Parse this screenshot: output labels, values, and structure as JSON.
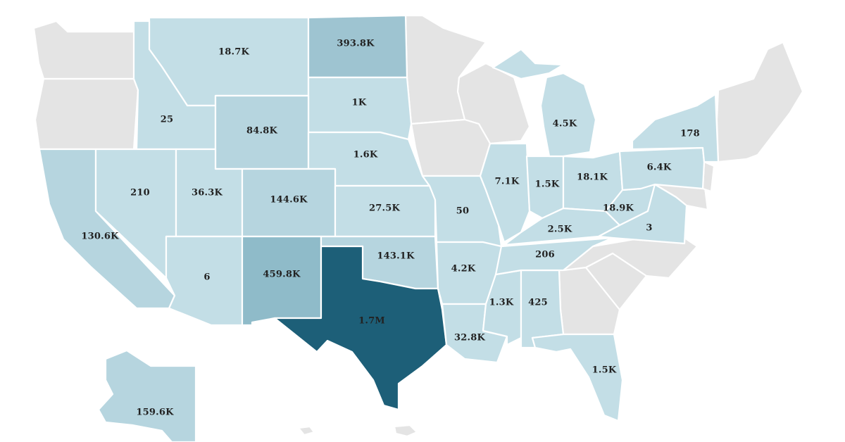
{
  "colors": {
    "no_data": "#e4e4e4",
    "tier1": "#c3dee6",
    "tier2": "#b6d5df",
    "tier3": "#9ec4d1",
    "tier4": "#8fbbc9",
    "max": "#1d5f78",
    "border": "#ffffff"
  },
  "states": {
    "TX": {
      "label": "1.7M",
      "value": 1700000
    },
    "NM": {
      "label": "459.8K",
      "value": 459800
    },
    "ND": {
      "label": "393.8K",
      "value": 393800
    },
    "AK": {
      "label": "159.6K",
      "value": 159600
    },
    "CO": {
      "label": "144.6K",
      "value": 144600
    },
    "OK": {
      "label": "143.1K",
      "value": 143100
    },
    "CA": {
      "label": "130.6K",
      "value": 130600
    },
    "WY": {
      "label": "84.8K",
      "value": 84800
    },
    "UT": {
      "label": "36.3K",
      "value": 36300
    },
    "LA": {
      "label": "32.8K",
      "value": 32800
    },
    "KS": {
      "label": "27.5K",
      "value": 27500
    },
    "WV": {
      "label": "18.9K",
      "value": 18900
    },
    "MT": {
      "label": "18.7K",
      "value": 18700
    },
    "OH": {
      "label": "18.1K",
      "value": 18100
    },
    "IL": {
      "label": "7.1K",
      "value": 7100
    },
    "PA": {
      "label": "6.4K",
      "value": 6400
    },
    "MI": {
      "label": "4.5K",
      "value": 4500
    },
    "AR": {
      "label": "4.2K",
      "value": 4200
    },
    "KY": {
      "label": "2.5K",
      "value": 2500
    },
    "NE": {
      "label": "1.6K",
      "value": 1600
    },
    "IN": {
      "label": "1.5K",
      "value": 1500
    },
    "FL": {
      "label": "1.5K",
      "value": 1500
    },
    "MS": {
      "label": "1.3K",
      "value": 1300
    },
    "SD": {
      "label": "1K",
      "value": 1000
    },
    "AL": {
      "label": "425",
      "value": 425
    },
    "NV": {
      "label": "210",
      "value": 210
    },
    "TN": {
      "label": "206",
      "value": 206
    },
    "NY": {
      "label": "178",
      "value": 178
    },
    "MO": {
      "label": "50",
      "value": 50
    },
    "ID": {
      "label": "25",
      "value": 25
    },
    "AZ": {
      "label": "6",
      "value": 6
    },
    "VA": {
      "label": "3",
      "value": 3
    }
  }
}
